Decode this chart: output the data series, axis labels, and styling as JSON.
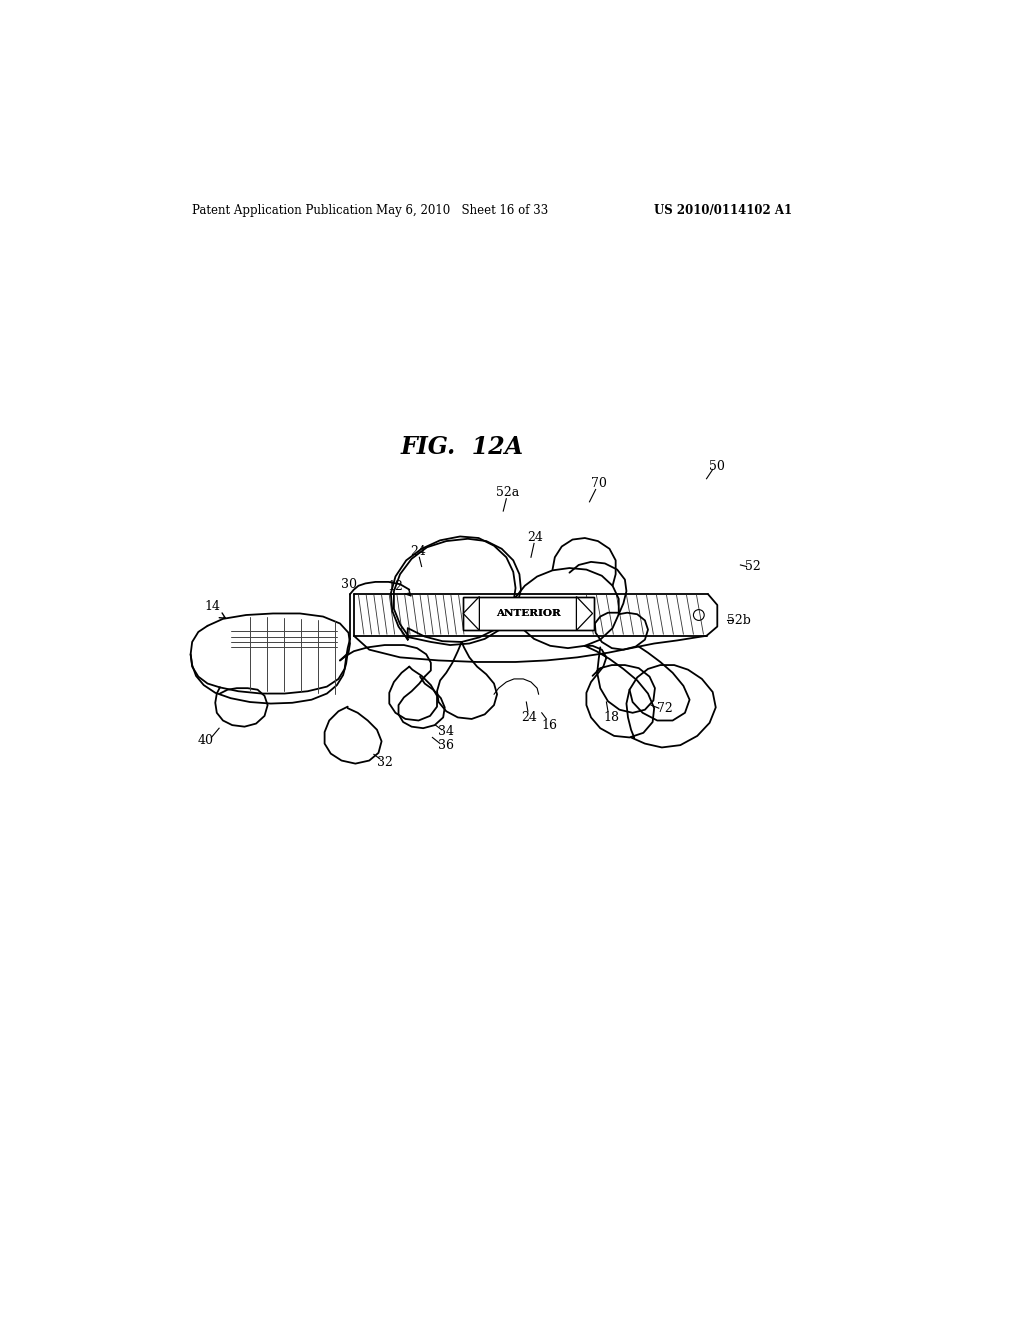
{
  "header_left": "Patent Application Publication",
  "header_mid": "May 6, 2010   Sheet 16 of 33",
  "header_right": "US 2010/0114102 A1",
  "fig_title": "FIG.  12A",
  "bg": "#ffffff",
  "lw": 1.3,
  "lw_thin": 0.8,
  "lw_hatch": 0.6,
  "label_fs": 9,
  "header_fs": 8.5,
  "title_fs": 17
}
